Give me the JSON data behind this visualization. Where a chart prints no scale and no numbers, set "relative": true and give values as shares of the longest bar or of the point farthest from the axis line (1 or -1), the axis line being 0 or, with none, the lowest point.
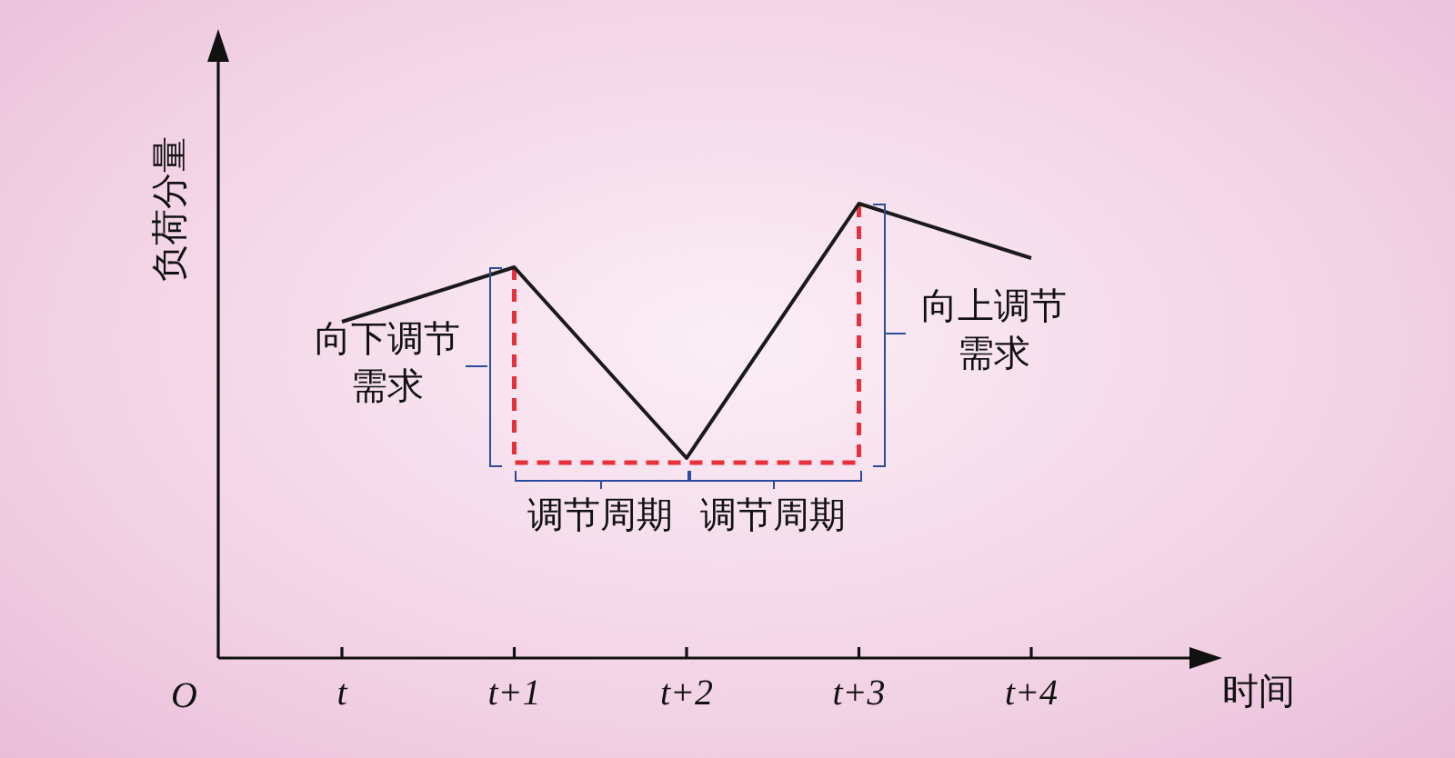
{
  "chart_data": {
    "type": "line",
    "relative": true,
    "xlabel": "时间",
    "ylabel": "负荷分量",
    "categories": [
      "t",
      "t+1",
      "t+2",
      "t+3",
      "t+4"
    ],
    "series": [
      {
        "color": "#1a1a1a",
        "values": [
          0.74,
          0.86,
          0.44,
          1,
          0.88
        ],
        "line_style": "solid"
      },
      {
        "color": "#e8303a",
        "x": [
          "t+1",
          "t+1",
          "t+3",
          "t+3"
        ],
        "values": [
          0.86,
          0.43,
          0.43,
          1
        ],
        "line_style": "dashed"
      }
    ],
    "annotations": [
      "向下调节需求",
      "向上调节需求",
      "调节周期",
      "调节周期",
      "O"
    ],
    "legend": false,
    "marker": "none"
  }
}
